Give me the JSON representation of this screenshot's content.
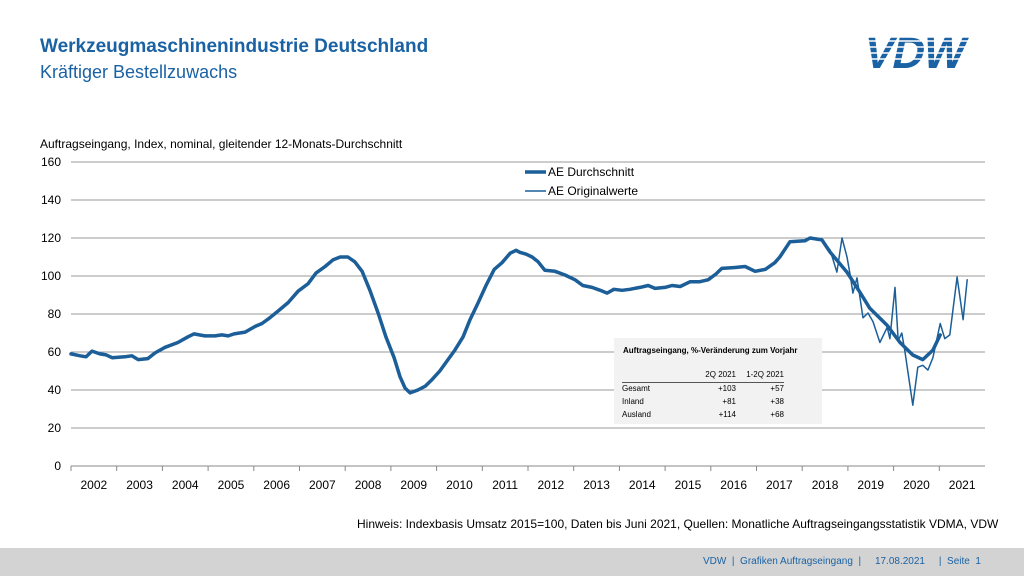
{
  "header": {
    "title": "Werkzeugmaschinenindustrie Deutschland",
    "subtitle": "Kräftiger Bestellzuwachs",
    "logo_text": "VDW"
  },
  "colors": {
    "brand": "#1a62a3",
    "line": "#1b5e98",
    "grid": "#9a9a9a"
  },
  "chart_data": {
    "type": "line",
    "ylabel": "Auftragseingang, Index, nominal, gleitender 12-Monats-Durchschnitt",
    "ylim": [
      0,
      160
    ],
    "yticks": [
      0,
      20,
      40,
      60,
      80,
      100,
      120,
      140,
      160
    ],
    "xlim": [
      2002,
      2022
    ],
    "xticks": [
      "2002",
      "2003",
      "2004",
      "2005",
      "2006",
      "2007",
      "2008",
      "2009",
      "2010",
      "2011",
      "2012",
      "2013",
      "2014",
      "2015",
      "2016",
      "2017",
      "2018",
      "2019",
      "2020",
      "2021"
    ],
    "grid": true,
    "legend_position": "top-center",
    "series": [
      {
        "name": "AE Durchschnitt",
        "style": "thick",
        "x": [
          2002.0,
          2002.2,
          2002.33,
          2002.46,
          2002.63,
          2002.77,
          2002.9,
          2003.18,
          2003.33,
          2003.47,
          2003.68,
          2003.84,
          2004.06,
          2004.34,
          2004.56,
          2004.69,
          2004.93,
          2005.15,
          2005.3,
          2005.44,
          2005.57,
          2005.81,
          2006.03,
          2006.18,
          2006.35,
          2006.53,
          2006.75,
          2006.97,
          2007.19,
          2007.36,
          2007.56,
          2007.73,
          2007.89,
          2008.06,
          2008.21,
          2008.37,
          2008.54,
          2008.72,
          2008.89,
          2009.07,
          2009.2,
          2009.31,
          2009.42,
          2009.59,
          2009.75,
          2009.9,
          2010.07,
          2010.25,
          2010.4,
          2010.58,
          2010.73,
          2010.91,
          2011.08,
          2011.26,
          2011.43,
          2011.61,
          2011.74,
          2011.82,
          2011.96,
          2012.09,
          2012.22,
          2012.37,
          2012.59,
          2012.81,
          2013.03,
          2013.2,
          2013.4,
          2013.58,
          2013.73,
          2013.88,
          2014.06,
          2014.23,
          2014.45,
          2014.63,
          2014.78,
          2015.0,
          2015.15,
          2015.33,
          2015.55,
          2015.76,
          2015.94,
          2016.11,
          2016.24,
          2016.53,
          2016.75,
          2016.97,
          2017.19,
          2017.4,
          2017.51,
          2017.73,
          2018.06,
          2018.17,
          2018.43,
          2018.61,
          2018.98,
          2019.26,
          2019.48,
          2019.86,
          2020.14,
          2020.42,
          2020.64,
          2020.86,
          2021.02
        ],
        "y": [
          59,
          58,
          57.5,
          60.5,
          59,
          58.5,
          57,
          57.5,
          58,
          56,
          56.5,
          59.5,
          62.5,
          65,
          68,
          69.5,
          68.5,
          68.5,
          69,
          68.5,
          69.5,
          70.5,
          73.5,
          75,
          78,
          81.5,
          86,
          92,
          96,
          101.5,
          105,
          108.5,
          110,
          110,
          107.5,
          102.5,
          92.5,
          80.5,
          68,
          57,
          47,
          41,
          38.5,
          40,
          42,
          45.5,
          50,
          56,
          61,
          68,
          77,
          86,
          95,
          103.5,
          107,
          112,
          113.5,
          112.5,
          111.5,
          110,
          107.5,
          103,
          102.5,
          100.5,
          98,
          95,
          94,
          92.5,
          91,
          93,
          92.5,
          93,
          94,
          95,
          93.5,
          94,
          95,
          94.5,
          97,
          97,
          98,
          101,
          104,
          104.5,
          105,
          102.5,
          103.5,
          107,
          110,
          118,
          118.5,
          120,
          119,
          112.6,
          102,
          91.5,
          83,
          74,
          65,
          58.4,
          56,
          61,
          69
        ]
      },
      {
        "name": "AE Originalwerte",
        "style": "thin",
        "x": [
          2018.21,
          2018.43,
          2018.61,
          2018.76,
          2018.87,
          2018.98,
          2019.05,
          2019.11,
          2019.2,
          2019.33,
          2019.44,
          2019.55,
          2019.7,
          2019.86,
          2019.92,
          2020.03,
          2020.1,
          2020.18,
          2020.25,
          2020.42,
          2020.53,
          2020.64,
          2020.75,
          2020.86,
          2021.02,
          2021.12,
          2021.23,
          2021.39,
          2021.52,
          2021.61
        ],
        "y": [
          120,
          119,
          113.7,
          102,
          120,
          110,
          100.5,
          91,
          99,
          78,
          80.5,
          76,
          65,
          73,
          67,
          94,
          66,
          70,
          60,
          32,
          52,
          53,
          50.5,
          57,
          75,
          67,
          69,
          99.5,
          77,
          98
        ]
      }
    ]
  },
  "table": {
    "title": "Auftragseingang, %-Veränderung zum Vorjahr",
    "columns": [
      "",
      "2Q 2021",
      "1-2Q 2021"
    ],
    "rows": [
      [
        "Gesamt",
        "+103",
        "+57"
      ],
      [
        "Inland",
        "+81",
        "+38"
      ],
      [
        "Ausland",
        "+114",
        "+68"
      ]
    ]
  },
  "note": "Hinweis: Indexbasis Umsatz 2015=100, Daten bis Juni 2021, Quellen: Monatliche Auftragseingangsstatistik VDMA, VDW",
  "footer": {
    "text": "VDW  |  Grafiken Auftragseingang  |     17.08.2021     |  Seite  1"
  }
}
